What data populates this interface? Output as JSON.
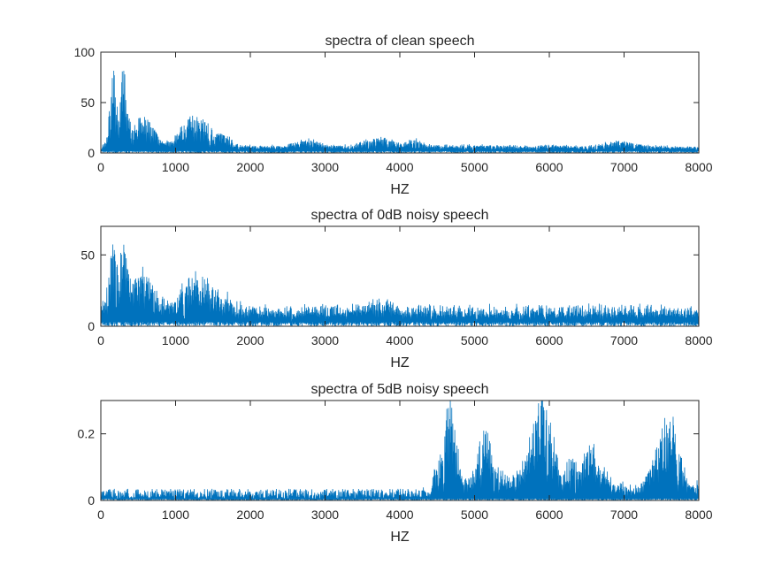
{
  "figure": {
    "line_color": "#0072BD",
    "axis_color": "#262626"
  },
  "chart_data": [
    {
      "type": "line",
      "title": "spectra of clean speech",
      "xlabel": "HZ",
      "ylabel": "",
      "xlim": [
        0,
        8000
      ],
      "ylim": [
        0,
        100
      ],
      "xticks": [
        0,
        1000,
        2000,
        3000,
        4000,
        5000,
        6000,
        7000,
        8000
      ],
      "yticks": [
        0,
        50,
        100
      ],
      "grid": false,
      "baseline": 2,
      "noise_amplitude": 2,
      "envelope": [
        [
          0,
          3
        ],
        [
          60,
          8
        ],
        [
          120,
          45
        ],
        [
          150,
          75
        ],
        [
          170,
          100
        ],
        [
          200,
          60
        ],
        [
          240,
          35
        ],
        [
          280,
          80
        ],
        [
          320,
          82
        ],
        [
          360,
          40
        ],
        [
          420,
          25
        ],
        [
          480,
          28
        ],
        [
          520,
          35
        ],
        [
          580,
          38
        ],
        [
          620,
          30
        ],
        [
          700,
          25
        ],
        [
          760,
          15
        ],
        [
          850,
          8
        ],
        [
          950,
          10
        ],
        [
          1050,
          20
        ],
        [
          1150,
          30
        ],
        [
          1250,
          38
        ],
        [
          1300,
          32
        ],
        [
          1350,
          30
        ],
        [
          1400,
          45
        ],
        [
          1450,
          28
        ],
        [
          1500,
          20
        ],
        [
          1600,
          18
        ],
        [
          1700,
          15
        ],
        [
          1800,
          6
        ],
        [
          2000,
          5
        ],
        [
          2200,
          4
        ],
        [
          2500,
          5
        ],
        [
          2700,
          10
        ],
        [
          2800,
          12
        ],
        [
          2900,
          8
        ],
        [
          3100,
          5
        ],
        [
          3300,
          5
        ],
        [
          3500,
          9
        ],
        [
          3700,
          13
        ],
        [
          3800,
          14
        ],
        [
          3900,
          10
        ],
        [
          4000,
          7
        ],
        [
          4200,
          12
        ],
        [
          4300,
          8
        ],
        [
          4500,
          5
        ],
        [
          5000,
          5
        ],
        [
          5500,
          4
        ],
        [
          6000,
          5
        ],
        [
          6500,
          4
        ],
        [
          6800,
          8
        ],
        [
          7000,
          10
        ],
        [
          7200,
          6
        ],
        [
          7500,
          4
        ],
        [
          8000,
          3
        ]
      ]
    },
    {
      "type": "line",
      "title": "spectra of 0dB noisy speech",
      "xlabel": "HZ",
      "ylabel": "",
      "xlim": [
        0,
        8000
      ],
      "ylim": [
        0,
        70
      ],
      "xticks": [
        0,
        1000,
        2000,
        3000,
        4000,
        5000,
        6000,
        7000,
        8000
      ],
      "yticks": [
        0,
        50
      ],
      "grid": false,
      "baseline": 3,
      "noise_amplitude": 8,
      "envelope": [
        [
          0,
          10
        ],
        [
          60,
          15
        ],
        [
          120,
          40
        ],
        [
          150,
          55
        ],
        [
          170,
          68
        ],
        [
          200,
          45
        ],
        [
          240,
          30
        ],
        [
          280,
          60
        ],
        [
          320,
          62
        ],
        [
          360,
          35
        ],
        [
          420,
          22
        ],
        [
          480,
          25
        ],
        [
          520,
          32
        ],
        [
          580,
          34
        ],
        [
          620,
          28
        ],
        [
          700,
          22
        ],
        [
          760,
          15
        ],
        [
          850,
          10
        ],
        [
          950,
          12
        ],
        [
          1050,
          18
        ],
        [
          1150,
          25
        ],
        [
          1250,
          30
        ],
        [
          1300,
          28
        ],
        [
          1350,
          27
        ],
        [
          1400,
          38
        ],
        [
          1450,
          25
        ],
        [
          1500,
          18
        ],
        [
          1600,
          16
        ],
        [
          1700,
          14
        ],
        [
          1800,
          8
        ],
        [
          2000,
          5
        ],
        [
          2500,
          5
        ],
        [
          2800,
          7
        ],
        [
          3000,
          5
        ],
        [
          3700,
          9
        ],
        [
          3800,
          12
        ],
        [
          3900,
          7
        ],
        [
          4000,
          5
        ],
        [
          5000,
          5
        ],
        [
          6000,
          5
        ],
        [
          7000,
          5
        ],
        [
          8000,
          5
        ]
      ]
    },
    {
      "type": "line",
      "title": "spectra of 5dB noisy speech",
      "xlabel": "HZ",
      "ylabel": "",
      "xlim": [
        0,
        8000
      ],
      "ylim": [
        0,
        0.3
      ],
      "xticks": [
        0,
        1000,
        2000,
        3000,
        4000,
        5000,
        6000,
        7000,
        8000
      ],
      "yticks": [
        0,
        0.2
      ],
      "grid": false,
      "baseline": 0.005,
      "noise_amplitude": 0.03,
      "envelope": [
        [
          0,
          0.0
        ],
        [
          1000,
          0.0
        ],
        [
          2000,
          0.0
        ],
        [
          3000,
          0.0
        ],
        [
          4000,
          0.0
        ],
        [
          4400,
          0.01
        ],
        [
          4500,
          0.1
        ],
        [
          4600,
          0.25
        ],
        [
          4680,
          0.3
        ],
        [
          4750,
          0.2
        ],
        [
          4850,
          0.04
        ],
        [
          5000,
          0.08
        ],
        [
          5100,
          0.2
        ],
        [
          5200,
          0.18
        ],
        [
          5300,
          0.08
        ],
        [
          5500,
          0.04
        ],
        [
          5700,
          0.12
        ],
        [
          5850,
          0.28
        ],
        [
          5950,
          0.3
        ],
        [
          6050,
          0.18
        ],
        [
          6150,
          0.06
        ],
        [
          6300,
          0.14
        ],
        [
          6400,
          0.07
        ],
        [
          6500,
          0.15
        ],
        [
          6600,
          0.16
        ],
        [
          6700,
          0.08
        ],
        [
          6900,
          0.03
        ],
        [
          7200,
          0.02
        ],
        [
          7400,
          0.12
        ],
        [
          7550,
          0.26
        ],
        [
          7650,
          0.24
        ],
        [
          7750,
          0.12
        ],
        [
          7850,
          0.04
        ],
        [
          8000,
          0.03
        ]
      ]
    }
  ]
}
